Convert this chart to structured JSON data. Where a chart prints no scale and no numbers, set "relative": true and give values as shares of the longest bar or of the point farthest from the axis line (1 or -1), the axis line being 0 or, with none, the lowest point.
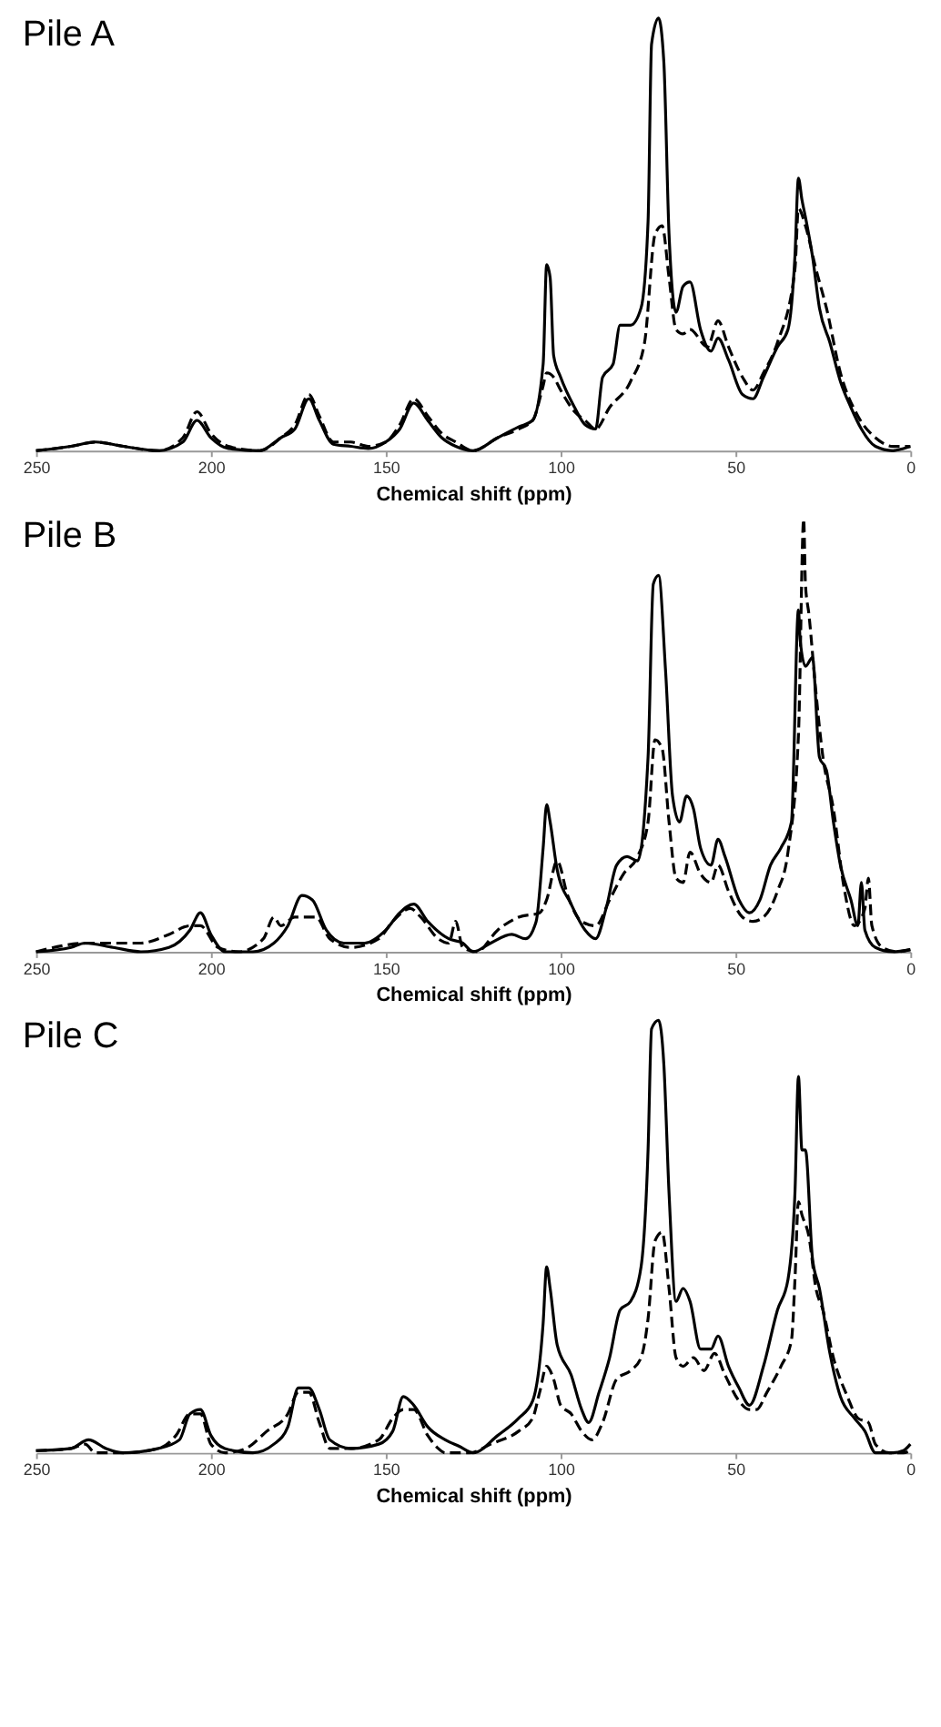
{
  "chart_data": [
    {
      "type": "line",
      "title": "Pile A",
      "xlabel": "Chemical shift (ppm)",
      "relative": true,
      "xlim": [
        250,
        0
      ],
      "xticks": [
        250,
        200,
        150,
        100,
        50,
        0
      ],
      "series": [
        {
          "color": "#000000",
          "line_style": "solid",
          "x": [
            250,
            240,
            233,
            225,
            215,
            208,
            204,
            200,
            195,
            186,
            180,
            176,
            172,
            169,
            165,
            160,
            155,
            150,
            146,
            142,
            138,
            134,
            130,
            125,
            118,
            112,
            108,
            105,
            104,
            103,
            102,
            100,
            96,
            93,
            90,
            88,
            85,
            83,
            80,
            77,
            75,
            74,
            72,
            70.5,
            69,
            67,
            65,
            63,
            60,
            57,
            55,
            52,
            48,
            45,
            42,
            38,
            35,
            33,
            32,
            31,
            30,
            28,
            26,
            23,
            20,
            17,
            14,
            10,
            5,
            2,
            0
          ],
          "values": [
            0.0,
            0.01,
            0.02,
            0.01,
            0.0,
            0.02,
            0.07,
            0.03,
            0.005,
            0.0,
            0.03,
            0.05,
            0.12,
            0.07,
            0.015,
            0.01,
            0.005,
            0.02,
            0.05,
            0.11,
            0.07,
            0.03,
            0.01,
            0.0,
            0.03,
            0.055,
            0.07,
            0.2,
            0.43,
            0.4,
            0.22,
            0.17,
            0.1,
            0.06,
            0.05,
            0.17,
            0.2,
            0.29,
            0.29,
            0.33,
            0.53,
            0.94,
            1.0,
            0.9,
            0.5,
            0.32,
            0.38,
            0.39,
            0.28,
            0.23,
            0.26,
            0.21,
            0.13,
            0.12,
            0.17,
            0.24,
            0.28,
            0.45,
            0.63,
            0.58,
            0.54,
            0.45,
            0.33,
            0.25,
            0.16,
            0.1,
            0.05,
            0.01,
            0.0,
            0.005,
            0.01
          ]
        },
        {
          "color": "#000000",
          "line_style": "dashed",
          "x": [
            250,
            240,
            233,
            225,
            215,
            208,
            204,
            200,
            195,
            186,
            180,
            176,
            172,
            169,
            165,
            160,
            155,
            150,
            146,
            142,
            138,
            134,
            130,
            125,
            118,
            112,
            108,
            105,
            104,
            102,
            100,
            96,
            93,
            90,
            86,
            80,
            76,
            73,
            71,
            69,
            67,
            65,
            63,
            58,
            55,
            52,
            48,
            45,
            42,
            38,
            33,
            32,
            30,
            27,
            24,
            20,
            15,
            10,
            5,
            0
          ],
          "values": [
            0.0,
            0.01,
            0.02,
            0.01,
            0.0,
            0.03,
            0.09,
            0.04,
            0.01,
            0.0,
            0.03,
            0.06,
            0.13,
            0.08,
            0.02,
            0.02,
            0.01,
            0.02,
            0.06,
            0.12,
            0.08,
            0.04,
            0.02,
            0.0,
            0.03,
            0.05,
            0.07,
            0.15,
            0.18,
            0.17,
            0.14,
            0.09,
            0.07,
            0.05,
            0.1,
            0.16,
            0.25,
            0.5,
            0.52,
            0.4,
            0.28,
            0.27,
            0.28,
            0.24,
            0.3,
            0.24,
            0.17,
            0.14,
            0.18,
            0.25,
            0.42,
            0.56,
            0.52,
            0.42,
            0.33,
            0.18,
            0.08,
            0.03,
            0.01,
            0.01
          ]
        }
      ]
    },
    {
      "type": "line",
      "title": "Pile B",
      "xlabel": "Chemical shift (ppm)",
      "relative": true,
      "xlim": [
        250,
        0
      ],
      "xticks": [
        250,
        200,
        150,
        100,
        50,
        0
      ],
      "series": [
        {
          "color": "#000000",
          "line_style": "solid",
          "x": [
            250,
            240,
            236,
            228,
            220,
            212,
            206,
            203,
            200,
            196,
            188,
            182,
            178,
            174,
            171,
            167,
            162,
            156,
            150,
            146,
            142,
            138,
            132,
            128,
            125,
            120,
            114,
            110,
            107,
            105,
            104,
            103,
            101,
            97,
            93,
            90,
            87,
            84,
            81,
            78,
            75,
            73.5,
            72,
            70,
            68,
            66,
            64,
            62,
            60,
            57,
            55,
            53,
            49,
            46,
            43,
            40,
            37,
            34,
            32,
            31.5,
            30,
            28,
            26,
            24,
            22,
            20,
            17,
            15,
            14,
            13,
            10,
            5,
            0
          ],
          "values": [
            0,
            0.01,
            0.02,
            0.01,
            0.0,
            0.01,
            0.05,
            0.09,
            0.04,
            0.0,
            0.0,
            0.02,
            0.06,
            0.13,
            0.12,
            0.05,
            0.02,
            0.02,
            0.05,
            0.09,
            0.11,
            0.07,
            0.03,
            0.02,
            0.0,
            0.02,
            0.04,
            0.03,
            0.07,
            0.24,
            0.34,
            0.3,
            0.19,
            0.11,
            0.05,
            0.03,
            0.1,
            0.2,
            0.22,
            0.21,
            0.45,
            0.85,
            0.87,
            0.65,
            0.36,
            0.3,
            0.36,
            0.33,
            0.24,
            0.2,
            0.26,
            0.22,
            0.12,
            0.09,
            0.12,
            0.2,
            0.24,
            0.3,
            0.79,
            0.72,
            0.66,
            0.68,
            0.45,
            0.42,
            0.3,
            0.2,
            0.12,
            0.06,
            0.16,
            0.05,
            0.01,
            0,
            0.005
          ]
        },
        {
          "color": "#000000",
          "line_style": "dashed",
          "x": [
            250,
            235,
            220,
            212,
            206,
            203,
            198,
            192,
            185,
            182,
            180,
            176,
            170,
            166,
            160,
            152,
            148,
            143,
            140,
            135,
            132,
            130,
            128,
            124,
            118,
            112,
            106,
            104,
            101,
            98,
            94,
            90,
            86,
            82,
            78,
            75,
            73,
            71,
            69,
            67,
            65,
            63,
            60,
            57,
            55,
            52,
            48,
            45,
            42,
            38,
            35,
            32,
            30.5,
            30,
            29,
            27,
            25,
            22,
            19,
            16,
            13,
            12,
            11,
            8,
            4,
            0
          ],
          "values": [
            0,
            0.02,
            0.02,
            0.04,
            0.06,
            0.06,
            0.01,
            0.0,
            0.03,
            0.08,
            0.06,
            0.08,
            0.08,
            0.03,
            0.01,
            0.03,
            0.07,
            0.1,
            0.08,
            0.03,
            0.02,
            0.07,
            0.01,
            0.0,
            0.05,
            0.08,
            0.09,
            0.12,
            0.21,
            0.13,
            0.07,
            0.06,
            0.12,
            0.18,
            0.22,
            0.3,
            0.49,
            0.47,
            0.3,
            0.17,
            0.16,
            0.23,
            0.18,
            0.16,
            0.2,
            0.14,
            0.08,
            0.07,
            0.08,
            0.14,
            0.23,
            0.5,
            1.0,
            0.85,
            0.78,
            0.6,
            0.45,
            0.33,
            0.15,
            0.06,
            0.1,
            0.17,
            0.06,
            0.01,
            0.0,
            0.005
          ]
        }
      ]
    },
    {
      "type": "line",
      "title": "Pile C",
      "xlabel": "Chemical shift (ppm)",
      "relative": true,
      "xlim": [
        250,
        0
      ],
      "xticks": [
        250,
        200,
        150,
        100,
        50,
        0
      ],
      "series": [
        {
          "color": "#000000",
          "line_style": "solid",
          "x": [
            250,
            240,
            235,
            230,
            225,
            215,
            209,
            206,
            203,
            200,
            196,
            188,
            182,
            178,
            175,
            172,
            169,
            166,
            160,
            152,
            148,
            145,
            142,
            138,
            133,
            129,
            125,
            118,
            112,
            108,
            105,
            104,
            103,
            101,
            97,
            94,
            92,
            89,
            86,
            83,
            80,
            77,
            75,
            74,
            72,
            70.5,
            69,
            67,
            65,
            63,
            60,
            57,
            55,
            52,
            49,
            46,
            42,
            38,
            35,
            33,
            32,
            31,
            30,
            28,
            26,
            23,
            20,
            16,
            13,
            10,
            5,
            2,
            0
          ],
          "values": [
            0.005,
            0.01,
            0.03,
            0.01,
            0.0,
            0.01,
            0.03,
            0.09,
            0.1,
            0.04,
            0.01,
            0.0,
            0.02,
            0.06,
            0.15,
            0.15,
            0.1,
            0.03,
            0.01,
            0.02,
            0.05,
            0.13,
            0.11,
            0.06,
            0.03,
            0.015,
            0.0,
            0.04,
            0.08,
            0.12,
            0.3,
            0.43,
            0.38,
            0.25,
            0.18,
            0.1,
            0.07,
            0.14,
            0.22,
            0.33,
            0.35,
            0.43,
            0.7,
            0.98,
            1.0,
            0.9,
            0.6,
            0.35,
            0.38,
            0.35,
            0.24,
            0.24,
            0.27,
            0.2,
            0.15,
            0.11,
            0.2,
            0.33,
            0.4,
            0.6,
            0.87,
            0.7,
            0.7,
            0.45,
            0.38,
            0.23,
            0.13,
            0.08,
            0.05,
            0.0,
            0.0,
            0.005,
            0.02
          ]
        },
        {
          "color": "#000000",
          "line_style": "dashed",
          "x": [
            250,
            240,
            236,
            233,
            225,
            215,
            210,
            206,
            203,
            200,
            196,
            190,
            184,
            178,
            175,
            172,
            169,
            166,
            160,
            152,
            148,
            145,
            142,
            138,
            135,
            133,
            126,
            120,
            112,
            108,
            106,
            104,
            102,
            100,
            97,
            94,
            91,
            88,
            84,
            80,
            77,
            75,
            73,
            71,
            69,
            67,
            65,
            62,
            59,
            56,
            53,
            49,
            46,
            44,
            41,
            37,
            34,
            33,
            32,
            31,
            29,
            27,
            25,
            22,
            18,
            15,
            12,
            10,
            6,
            2,
            0
          ],
          "values": [
            0.005,
            0.01,
            0.02,
            0.0,
            0.0,
            0.01,
            0.04,
            0.09,
            0.09,
            0.02,
            0.0,
            0.01,
            0.05,
            0.09,
            0.14,
            0.14,
            0.07,
            0.01,
            0.01,
            0.03,
            0.08,
            0.1,
            0.1,
            0.04,
            0.01,
            0.0,
            0.0,
            0.02,
            0.05,
            0.08,
            0.14,
            0.2,
            0.17,
            0.11,
            0.09,
            0.05,
            0.03,
            0.07,
            0.17,
            0.19,
            0.22,
            0.31,
            0.49,
            0.51,
            0.38,
            0.22,
            0.2,
            0.22,
            0.19,
            0.23,
            0.18,
            0.12,
            0.1,
            0.1,
            0.14,
            0.2,
            0.26,
            0.4,
            0.58,
            0.55,
            0.5,
            0.38,
            0.33,
            0.22,
            0.13,
            0.08,
            0.07,
            0.02,
            0.0,
            0.0,
            0.005
          ]
        }
      ]
    }
  ]
}
